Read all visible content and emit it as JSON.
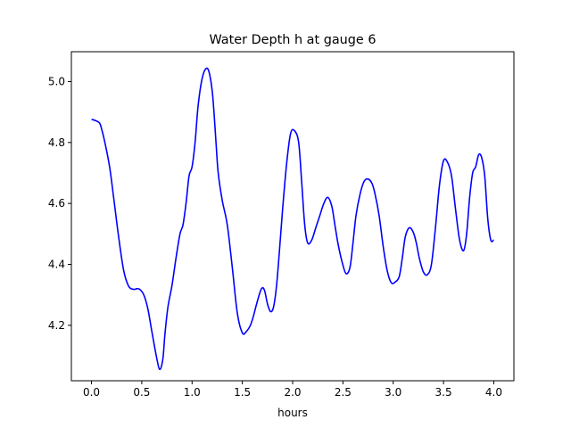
{
  "chart_data": {
    "type": "line",
    "title": "Water Depth h at gauge 6",
    "xlabel": "hours",
    "ylabel": "",
    "xlim": [
      -0.2,
      4.2
    ],
    "ylim": [
      4.018,
      5.098
    ],
    "xticks": [
      "0.0",
      "0.5",
      "1.0",
      "1.5",
      "2.0",
      "2.5",
      "3.0",
      "3.5",
      "4.0"
    ],
    "yticks": [
      "4.2",
      "4.4",
      "4.6",
      "4.8",
      "5.0"
    ],
    "grid": false,
    "legend": "none",
    "series": [
      {
        "color": "#0000ff",
        "x": [
          0.0,
          0.04,
          0.08,
          0.1,
          0.13,
          0.18,
          0.22,
          0.27,
          0.32,
          0.37,
          0.42,
          0.45,
          0.48,
          0.52,
          0.56,
          0.6,
          0.65,
          0.68,
          0.71,
          0.73,
          0.76,
          0.8,
          0.84,
          0.88,
          0.91,
          0.94,
          0.97,
          1.0,
          1.03,
          1.06,
          1.1,
          1.14,
          1.17,
          1.2,
          1.22,
          1.24,
          1.26,
          1.3,
          1.35,
          1.4,
          1.45,
          1.5,
          1.54,
          1.58,
          1.61,
          1.65,
          1.69,
          1.72,
          1.75,
          1.78,
          1.81,
          1.84,
          1.87,
          1.9,
          1.94,
          1.98,
          2.02,
          2.06,
          2.09,
          2.12,
          2.15,
          2.19,
          2.23,
          2.27,
          2.31,
          2.35,
          2.39,
          2.42,
          2.45,
          2.49,
          2.53,
          2.57,
          2.6,
          2.63,
          2.67,
          2.71,
          2.75,
          2.79,
          2.82,
          2.86,
          2.9,
          2.94,
          2.98,
          3.02,
          3.06,
          3.09,
          3.12,
          3.16,
          3.2,
          3.23,
          3.26,
          3.3,
          3.34,
          3.38,
          3.42,
          3.46,
          3.5,
          3.54,
          3.58,
          3.62,
          3.66,
          3.7,
          3.73,
          3.76,
          3.79,
          3.82,
          3.85,
          3.88,
          3.91,
          3.94,
          3.97,
          4.0
        ],
        "y": [
          4.876,
          4.872,
          4.864,
          4.845,
          4.805,
          4.72,
          4.62,
          4.49,
          4.38,
          4.328,
          4.318,
          4.32,
          4.318,
          4.3,
          4.255,
          4.18,
          4.09,
          4.055,
          4.09,
          4.17,
          4.26,
          4.33,
          4.42,
          4.5,
          4.53,
          4.6,
          4.69,
          4.72,
          4.8,
          4.92,
          5.01,
          5.043,
          5.03,
          4.97,
          4.89,
          4.79,
          4.7,
          4.61,
          4.53,
          4.39,
          4.24,
          4.175,
          4.18,
          4.2,
          4.23,
          4.28,
          4.32,
          4.315,
          4.27,
          4.245,
          4.26,
          4.33,
          4.45,
          4.58,
          4.73,
          4.83,
          4.838,
          4.8,
          4.67,
          4.53,
          4.47,
          4.48,
          4.52,
          4.56,
          4.6,
          4.62,
          4.59,
          4.53,
          4.47,
          4.41,
          4.37,
          4.39,
          4.47,
          4.56,
          4.63,
          4.672,
          4.68,
          4.665,
          4.63,
          4.56,
          4.46,
          4.38,
          4.34,
          4.342,
          4.36,
          4.42,
          4.49,
          4.52,
          4.505,
          4.47,
          4.42,
          4.375,
          4.366,
          4.4,
          4.52,
          4.66,
          4.74,
          4.735,
          4.69,
          4.58,
          4.48,
          4.445,
          4.5,
          4.62,
          4.7,
          4.72,
          4.76,
          4.75,
          4.69,
          4.55,
          4.48,
          4.48
        ]
      }
    ]
  }
}
